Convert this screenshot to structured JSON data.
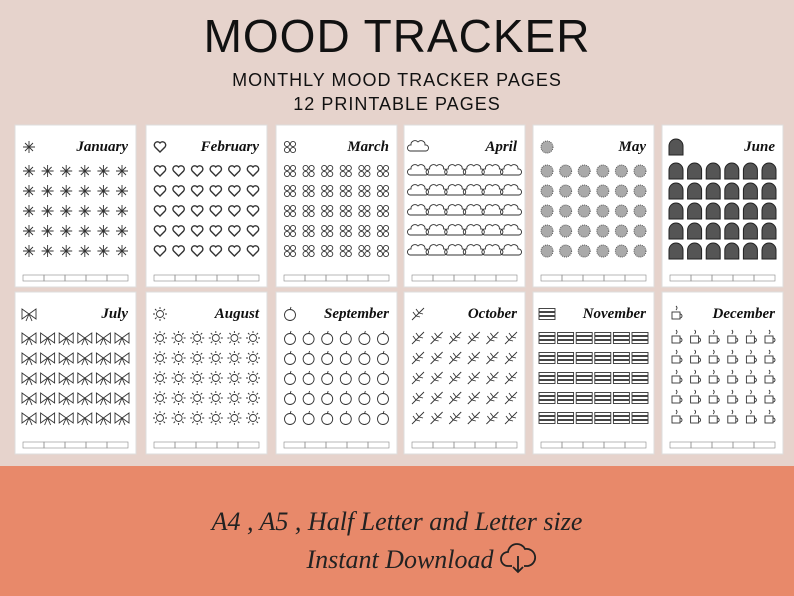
{
  "header": {
    "title": "MOOD TRACKER",
    "subtitle": "MONTHLY MOOD TRACKER PAGES",
    "subtitle2": "12 PRINTABLE PAGES"
  },
  "pages": [
    {
      "month": "January"
    },
    {
      "month": "February"
    },
    {
      "month": "March"
    },
    {
      "month": "April"
    },
    {
      "month": "May"
    },
    {
      "month": "June"
    },
    {
      "month": "July"
    },
    {
      "month": "August"
    },
    {
      "month": "September"
    },
    {
      "month": "October"
    },
    {
      "month": "November"
    },
    {
      "month": "December"
    }
  ],
  "footer": {
    "sizes": "A4 , A5 , Half Letter and Letter size",
    "download": "Instant Download"
  }
}
